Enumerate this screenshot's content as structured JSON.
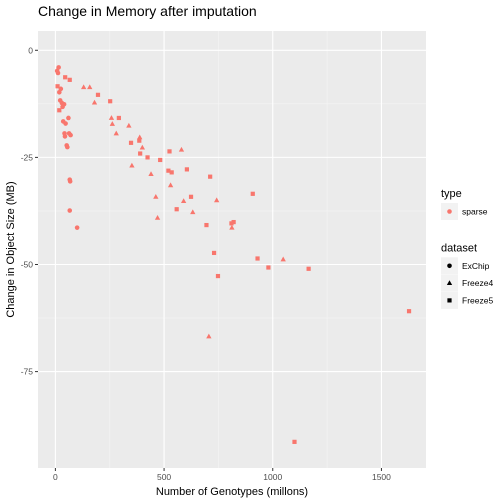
{
  "chart_data": {
    "type": "scatter",
    "title": "Change in Memory after imputation",
    "xlabel": "Number of Genotypes (millons)",
    "ylabel": "Change in Object Size (MB)",
    "xlim": [
      -80,
      1705
    ],
    "ylim": [
      -97.5,
      4.5
    ],
    "x_ticks": [
      0,
      500,
      1000,
      1500
    ],
    "y_ticks": [
      0,
      -25,
      -50,
      -75
    ],
    "grid": true,
    "legend_position": "right",
    "color": "#F8766D",
    "legends": [
      {
        "title": "type",
        "entries": [
          {
            "label": "sparse",
            "shape": "circle"
          }
        ]
      },
      {
        "title": "dataset",
        "entries": [
          {
            "label": "ExChip",
            "shape": "circle"
          },
          {
            "label": "Freeze4",
            "shape": "triangle"
          },
          {
            "label": "Freeze5",
            "shape": "square"
          }
        ]
      }
    ],
    "series": [
      {
        "name": "ExChip",
        "shape": "circle",
        "points": [
          [
            8,
            -4.8
          ],
          [
            12,
            -5.3
          ],
          [
            15,
            -4.0
          ],
          [
            18,
            -9.8
          ],
          [
            22,
            -11.7
          ],
          [
            25,
            -9.0
          ],
          [
            30,
            -12.3
          ],
          [
            33,
            -13.2
          ],
          [
            36,
            -16.6
          ],
          [
            40,
            -12.6
          ],
          [
            42,
            -19.4
          ],
          [
            44,
            -20.1
          ],
          [
            47,
            -17.1
          ],
          [
            52,
            -22.2
          ],
          [
            55,
            -22.6
          ],
          [
            60,
            -15.8
          ],
          [
            63,
            -19.4
          ],
          [
            66,
            -30.2
          ],
          [
            68,
            -30.6
          ],
          [
            70,
            -19.8
          ],
          [
            66,
            -37.4
          ],
          [
            100,
            -41.4
          ]
        ]
      },
      {
        "name": "Freeze4",
        "shape": "triangle",
        "points": [
          [
            130,
            -8.6
          ],
          [
            158,
            -8.6
          ],
          [
            180,
            -12.2
          ],
          [
            258,
            -15.8
          ],
          [
            262,
            -17.2
          ],
          [
            280,
            -19.4
          ],
          [
            338,
            -17.6
          ],
          [
            352,
            -26.9
          ],
          [
            388,
            -20.3
          ],
          [
            400,
            -22.7
          ],
          [
            440,
            -28.9
          ],
          [
            462,
            -34.2
          ],
          [
            470,
            -39.1
          ],
          [
            530,
            -31.5
          ],
          [
            580,
            -23.2
          ],
          [
            590,
            -35.2
          ],
          [
            632,
            -37.8
          ],
          [
            706,
            -66.8
          ],
          [
            742,
            -35.0
          ],
          [
            812,
            -41.4
          ],
          [
            1048,
            -48.8
          ]
        ]
      },
      {
        "name": "Freeze5",
        "shape": "square",
        "points": [
          [
            10,
            -8.4
          ],
          [
            18,
            -14.0
          ],
          [
            45,
            -6.3
          ],
          [
            66,
            -6.9
          ],
          [
            196,
            -10.4
          ],
          [
            252,
            -11.9
          ],
          [
            292,
            -15.8
          ],
          [
            348,
            -21.6
          ],
          [
            386,
            -21.1
          ],
          [
            390,
            -24.1
          ],
          [
            424,
            -25.0
          ],
          [
            482,
            -25.6
          ],
          [
            520,
            -28.1
          ],
          [
            525,
            -23.6
          ],
          [
            535,
            -28.5
          ],
          [
            558,
            -37.1
          ],
          [
            605,
            -27.8
          ],
          [
            624,
            -34.2
          ],
          [
            695,
            -40.8
          ],
          [
            712,
            -29.5
          ],
          [
            730,
            -47.3
          ],
          [
            748,
            -52.7
          ],
          [
            810,
            -40.4
          ],
          [
            820,
            -40.1
          ],
          [
            908,
            -33.5
          ],
          [
            930,
            -48.6
          ],
          [
            980,
            -50.7
          ],
          [
            1165,
            -51.0
          ],
          [
            1627,
            -60.9
          ],
          [
            1100,
            -91.4
          ]
        ]
      }
    ]
  }
}
